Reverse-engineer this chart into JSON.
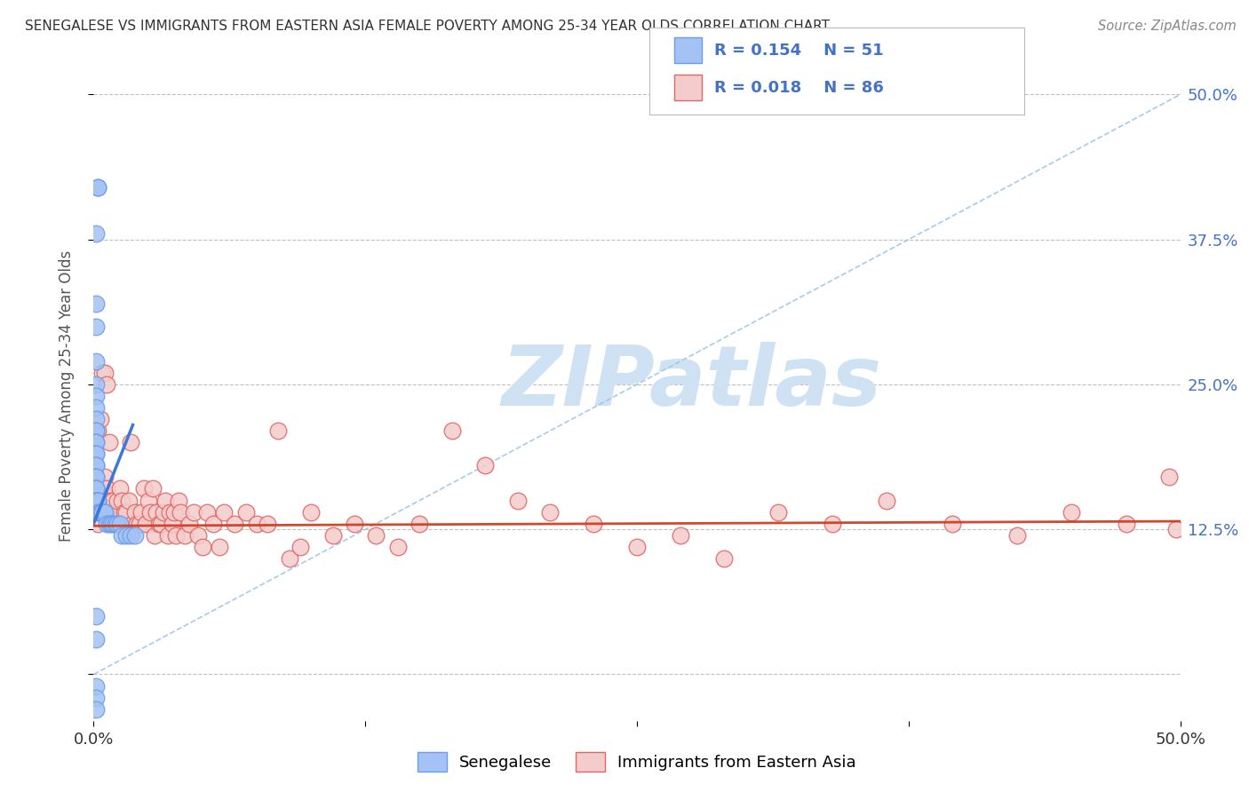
{
  "title": "SENEGALESE VS IMMIGRANTS FROM EASTERN ASIA FEMALE POVERTY AMONG 25-34 YEAR OLDS CORRELATION CHART",
  "source": "Source: ZipAtlas.com",
  "ylabel": "Female Poverty Among 25-34 Year Olds",
  "xlim": [
    0.0,
    0.5
  ],
  "ylim": [
    -0.04,
    0.52
  ],
  "legend1_R": "0.154",
  "legend1_N": "51",
  "legend2_R": "0.018",
  "legend2_N": "86",
  "label_color": "#4472c4",
  "blue_fill": "#a4c2f4",
  "blue_edge": "#6d9eeb",
  "pink_fill": "#f4cccc",
  "pink_edge": "#e06666",
  "trend_blue_solid": "#3c78d8",
  "trend_blue_dashed": "#9fc5e8",
  "trend_pink": "#cc4125",
  "grid_color": "#c0c0c0",
  "background": "#ffffff",
  "watermark": "ZIPatlas",
  "watermark_color": "#cfe2f3",
  "senegalese_x": [
    0.002,
    0.002,
    0.001,
    0.001,
    0.001,
    0.001,
    0.001,
    0.001,
    0.001,
    0.001,
    0.001,
    0.001,
    0.001,
    0.001,
    0.001,
    0.001,
    0.001,
    0.001,
    0.001,
    0.001,
    0.001,
    0.001,
    0.001,
    0.001,
    0.001,
    0.002,
    0.002,
    0.002,
    0.002,
    0.003,
    0.003,
    0.004,
    0.004,
    0.005,
    0.005,
    0.006,
    0.007,
    0.008,
    0.009,
    0.01,
    0.011,
    0.012,
    0.013,
    0.015,
    0.017,
    0.019,
    0.001,
    0.001,
    0.001,
    0.001,
    0.001
  ],
  "senegalese_y": [
    0.42,
    0.42,
    0.38,
    0.32,
    0.3,
    0.27,
    0.25,
    0.24,
    0.23,
    0.22,
    0.21,
    0.21,
    0.2,
    0.2,
    0.19,
    0.19,
    0.18,
    0.18,
    0.17,
    0.17,
    0.16,
    0.16,
    0.16,
    0.15,
    0.15,
    0.15,
    0.15,
    0.15,
    0.14,
    0.14,
    0.14,
    0.14,
    0.14,
    0.14,
    0.14,
    0.13,
    0.13,
    0.13,
    0.13,
    0.13,
    0.13,
    0.13,
    0.12,
    0.12,
    0.12,
    0.12,
    0.05,
    0.03,
    -0.01,
    -0.02,
    -0.03
  ],
  "eastern_asia_x": [
    0.001,
    0.002,
    0.003,
    0.004,
    0.005,
    0.006,
    0.006,
    0.007,
    0.008,
    0.009,
    0.01,
    0.011,
    0.012,
    0.013,
    0.014,
    0.015,
    0.016,
    0.017,
    0.018,
    0.019,
    0.02,
    0.021,
    0.022,
    0.023,
    0.024,
    0.025,
    0.026,
    0.027,
    0.028,
    0.029,
    0.03,
    0.031,
    0.032,
    0.033,
    0.034,
    0.035,
    0.036,
    0.037,
    0.038,
    0.039,
    0.04,
    0.042,
    0.044,
    0.046,
    0.048,
    0.05,
    0.052,
    0.055,
    0.058,
    0.06,
    0.065,
    0.07,
    0.075,
    0.08,
    0.085,
    0.09,
    0.095,
    0.1,
    0.11,
    0.12,
    0.13,
    0.14,
    0.15,
    0.165,
    0.18,
    0.195,
    0.21,
    0.23,
    0.25,
    0.27,
    0.29,
    0.315,
    0.34,
    0.365,
    0.395,
    0.425,
    0.45,
    0.475,
    0.495,
    0.498,
    0.002,
    0.003,
    0.004,
    0.005,
    0.006,
    0.007
  ],
  "eastern_asia_y": [
    0.14,
    0.13,
    0.14,
    0.16,
    0.17,
    0.16,
    0.15,
    0.14,
    0.15,
    0.15,
    0.14,
    0.15,
    0.16,
    0.15,
    0.14,
    0.14,
    0.15,
    0.2,
    0.13,
    0.14,
    0.13,
    0.13,
    0.14,
    0.16,
    0.13,
    0.15,
    0.14,
    0.16,
    0.12,
    0.14,
    0.13,
    0.13,
    0.14,
    0.15,
    0.12,
    0.14,
    0.13,
    0.14,
    0.12,
    0.15,
    0.14,
    0.12,
    0.13,
    0.14,
    0.12,
    0.11,
    0.14,
    0.13,
    0.11,
    0.14,
    0.13,
    0.14,
    0.13,
    0.13,
    0.21,
    0.1,
    0.11,
    0.14,
    0.12,
    0.13,
    0.12,
    0.11,
    0.13,
    0.21,
    0.18,
    0.15,
    0.14,
    0.13,
    0.11,
    0.12,
    0.1,
    0.14,
    0.13,
    0.15,
    0.13,
    0.12,
    0.14,
    0.13,
    0.17,
    0.125,
    0.21,
    0.22,
    0.26,
    0.26,
    0.25,
    0.2
  ]
}
